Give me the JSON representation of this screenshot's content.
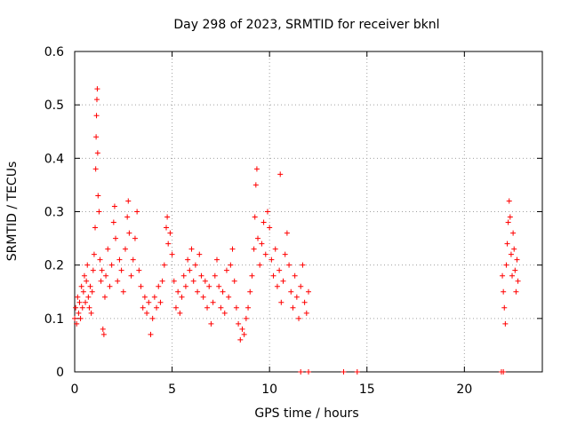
{
  "chart_data": {
    "type": "scatter",
    "title": "Day 298 of 2023, SRMTID for receiver bknl",
    "xlabel": "GPS time / hours",
    "ylabel": "SRMTID / TECUs",
    "xlim": [
      0,
      24
    ],
    "ylim": [
      0,
      0.6
    ],
    "x_ticks": [
      0,
      5,
      10,
      15,
      20
    ],
    "x_tick_labels": [
      "0",
      "5",
      "10",
      "15",
      "20"
    ],
    "y_ticks": [
      0,
      0.1,
      0.2,
      0.3,
      0.4,
      0.5,
      0.6
    ],
    "y_tick_labels": [
      "0",
      "0.1",
      "0.2",
      "0.3",
      "0.4",
      "0.5",
      "0.6"
    ],
    "grid": true,
    "marker": "+",
    "color": "#ff0000",
    "series": [
      {
        "name": "bknl",
        "points": [
          [
            0.0,
            0.1
          ],
          [
            0.05,
            0.12
          ],
          [
            0.1,
            0.09
          ],
          [
            0.15,
            0.14
          ],
          [
            0.2,
            0.11
          ],
          [
            0.25,
            0.13
          ],
          [
            0.3,
            0.1
          ],
          [
            0.35,
            0.16
          ],
          [
            0.4,
            0.12
          ],
          [
            0.45,
            0.15
          ],
          [
            0.5,
            0.18
          ],
          [
            0.55,
            0.13
          ],
          [
            0.6,
            0.17
          ],
          [
            0.65,
            0.2
          ],
          [
            0.7,
            0.14
          ],
          [
            0.75,
            0.12
          ],
          [
            0.8,
            0.16
          ],
          [
            0.85,
            0.11
          ],
          [
            0.9,
            0.15
          ],
          [
            0.95,
            0.19
          ],
          [
            1.0,
            0.22
          ],
          [
            1.05,
            0.27
          ],
          [
            1.08,
            0.38
          ],
          [
            1.1,
            0.44
          ],
          [
            1.12,
            0.48
          ],
          [
            1.14,
            0.51
          ],
          [
            1.16,
            0.53
          ],
          [
            1.18,
            0.41
          ],
          [
            1.2,
            0.33
          ],
          [
            1.25,
            0.3
          ],
          [
            1.3,
            0.21
          ],
          [
            1.35,
            0.17
          ],
          [
            1.4,
            0.19
          ],
          [
            1.45,
            0.08
          ],
          [
            1.5,
            0.07
          ],
          [
            1.55,
            0.14
          ],
          [
            1.6,
            0.18
          ],
          [
            1.7,
            0.23
          ],
          [
            1.8,
            0.16
          ],
          [
            1.9,
            0.2
          ],
          [
            2.0,
            0.28
          ],
          [
            2.05,
            0.31
          ],
          [
            2.1,
            0.25
          ],
          [
            2.2,
            0.17
          ],
          [
            2.3,
            0.21
          ],
          [
            2.4,
            0.19
          ],
          [
            2.5,
            0.15
          ],
          [
            2.6,
            0.23
          ],
          [
            2.7,
            0.29
          ],
          [
            2.75,
            0.32
          ],
          [
            2.8,
            0.26
          ],
          [
            2.9,
            0.18
          ],
          [
            3.0,
            0.21
          ],
          [
            3.1,
            0.25
          ],
          [
            3.2,
            0.3
          ],
          [
            3.3,
            0.19
          ],
          [
            3.4,
            0.16
          ],
          [
            3.5,
            0.12
          ],
          [
            3.6,
            0.14
          ],
          [
            3.7,
            0.11
          ],
          [
            3.8,
            0.13
          ],
          [
            3.9,
            0.07
          ],
          [
            4.0,
            0.1
          ],
          [
            4.1,
            0.14
          ],
          [
            4.2,
            0.12
          ],
          [
            4.3,
            0.16
          ],
          [
            4.4,
            0.13
          ],
          [
            4.5,
            0.17
          ],
          [
            4.6,
            0.2
          ],
          [
            4.7,
            0.27
          ],
          [
            4.75,
            0.29
          ],
          [
            4.8,
            0.24
          ],
          [
            4.9,
            0.26
          ],
          [
            5.0,
            0.22
          ],
          [
            5.1,
            0.17
          ],
          [
            5.2,
            0.12
          ],
          [
            5.3,
            0.15
          ],
          [
            5.4,
            0.11
          ],
          [
            5.5,
            0.14
          ],
          [
            5.6,
            0.18
          ],
          [
            5.7,
            0.16
          ],
          [
            5.8,
            0.21
          ],
          [
            5.9,
            0.19
          ],
          [
            6.0,
            0.23
          ],
          [
            6.1,
            0.17
          ],
          [
            6.2,
            0.2
          ],
          [
            6.3,
            0.15
          ],
          [
            6.4,
            0.22
          ],
          [
            6.5,
            0.18
          ],
          [
            6.6,
            0.14
          ],
          [
            6.7,
            0.17
          ],
          [
            6.8,
            0.12
          ],
          [
            6.9,
            0.16
          ],
          [
            7.0,
            0.09
          ],
          [
            7.1,
            0.13
          ],
          [
            7.2,
            0.18
          ],
          [
            7.3,
            0.21
          ],
          [
            7.4,
            0.16
          ],
          [
            7.5,
            0.12
          ],
          [
            7.6,
            0.15
          ],
          [
            7.7,
            0.11
          ],
          [
            7.8,
            0.19
          ],
          [
            7.9,
            0.14
          ],
          [
            8.0,
            0.2
          ],
          [
            8.1,
            0.23
          ],
          [
            8.2,
            0.17
          ],
          [
            8.3,
            0.12
          ],
          [
            8.4,
            0.09
          ],
          [
            8.5,
            0.06
          ],
          [
            8.6,
            0.08
          ],
          [
            8.7,
            0.07
          ],
          [
            8.8,
            0.1
          ],
          [
            8.9,
            0.12
          ],
          [
            9.0,
            0.15
          ],
          [
            9.1,
            0.18
          ],
          [
            9.2,
            0.23
          ],
          [
            9.25,
            0.29
          ],
          [
            9.3,
            0.35
          ],
          [
            9.35,
            0.38
          ],
          [
            9.4,
            0.25
          ],
          [
            9.5,
            0.2
          ],
          [
            9.6,
            0.24
          ],
          [
            9.7,
            0.28
          ],
          [
            9.8,
            0.22
          ],
          [
            9.9,
            0.3
          ],
          [
            10.0,
            0.27
          ],
          [
            10.1,
            0.21
          ],
          [
            10.2,
            0.18
          ],
          [
            10.3,
            0.23
          ],
          [
            10.4,
            0.16
          ],
          [
            10.5,
            0.19
          ],
          [
            10.55,
            0.37
          ],
          [
            10.6,
            0.13
          ],
          [
            10.7,
            0.17
          ],
          [
            10.8,
            0.22
          ],
          [
            10.9,
            0.26
          ],
          [
            11.0,
            0.2
          ],
          [
            11.1,
            0.15
          ],
          [
            11.2,
            0.12
          ],
          [
            11.3,
            0.18
          ],
          [
            11.4,
            0.14
          ],
          [
            11.5,
            0.1
          ],
          [
            11.6,
            0.16
          ],
          [
            11.7,
            0.2
          ],
          [
            11.8,
            0.13
          ],
          [
            11.9,
            0.11
          ],
          [
            12.0,
            0.15
          ],
          [
            11.6,
            0.0
          ],
          [
            12.0,
            0.0
          ],
          [
            13.8,
            0.0
          ],
          [
            14.5,
            0.0
          ],
          [
            21.9,
            0.0
          ],
          [
            22.0,
            0.0
          ],
          [
            21.95,
            0.18
          ],
          [
            22.0,
            0.15
          ],
          [
            22.05,
            0.12
          ],
          [
            22.1,
            0.09
          ],
          [
            22.15,
            0.2
          ],
          [
            22.2,
            0.24
          ],
          [
            22.25,
            0.28
          ],
          [
            22.3,
            0.32
          ],
          [
            22.35,
            0.29
          ],
          [
            22.4,
            0.22
          ],
          [
            22.45,
            0.18
          ],
          [
            22.5,
            0.26
          ],
          [
            22.55,
            0.23
          ],
          [
            22.6,
            0.19
          ],
          [
            22.65,
            0.15
          ],
          [
            22.7,
            0.21
          ],
          [
            22.75,
            0.17
          ]
        ]
      }
    ]
  }
}
